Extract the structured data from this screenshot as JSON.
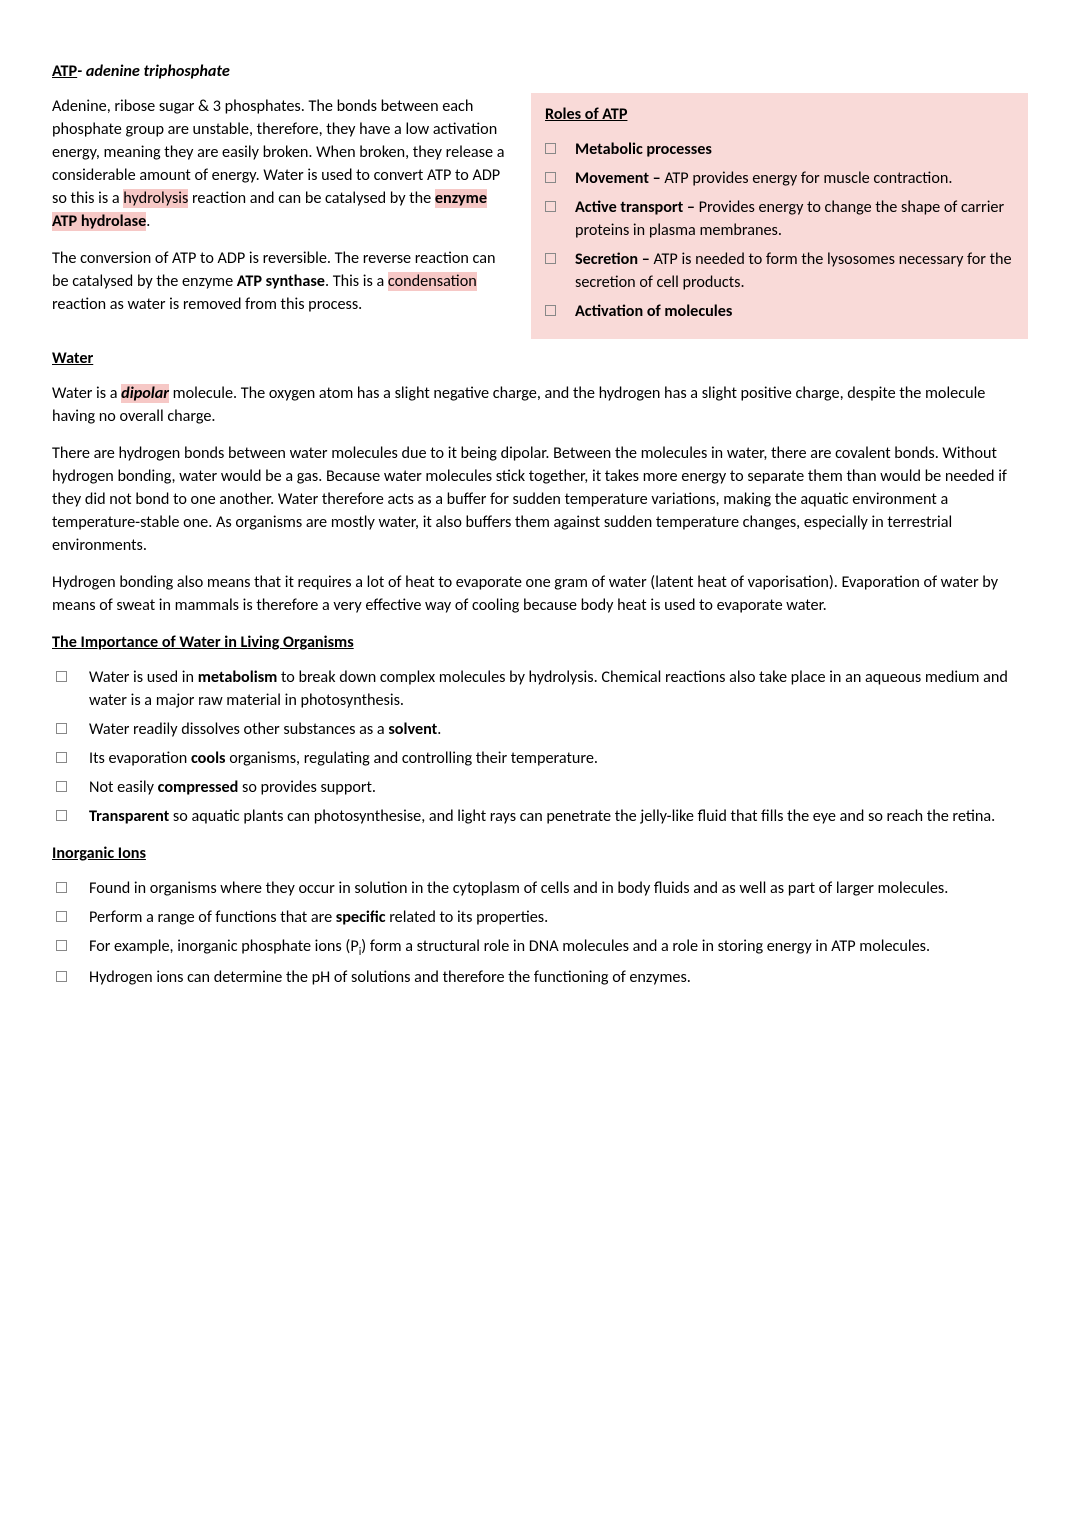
{
  "colors": {
    "highlight": "#f6c8c6",
    "aside_bg": "#f9dad8",
    "text": "#000000",
    "page_bg": "#ffffff",
    "checkbox_border": "#888888"
  },
  "typography": {
    "font_family": "Calibri",
    "body_size_pt": 12,
    "line_height": 1.42
  },
  "title": {
    "bold_part": "ATP",
    "separator": "- ",
    "italic_part": "adenine triphosphate"
  },
  "atp_para1": {
    "pre": "Adenine, ribose sugar & 3 phosphates. The bonds between each phosphate group are unstable, therefore, they have a low activation energy, meaning they are easily broken. When broken, they release a considerable amount of energy. Water is used to convert ATP to ADP so this is a ",
    "hl1": "hydrolysis",
    "mid1": " reaction and can be catalysed by the ",
    "hl2_bold": "enzyme ATP hydrolase",
    "end": "."
  },
  "atp_para2": {
    "pre": "The conversion of ATP to ADP is reversible. The reverse reaction can be catalysed by the enzyme ",
    "bold1": "ATP synthase",
    "mid": ". This is a ",
    "hl1": "condensation",
    "end": " reaction as water is removed from this process."
  },
  "aside": {
    "heading": "Roles of ATP",
    "items": [
      {
        "bold": "Metabolic processes",
        "rest": ""
      },
      {
        "bold": "Movement – ",
        "rest": "ATP provides energy for muscle contraction."
      },
      {
        "bold": "Active transport – ",
        "rest": "Provides energy to change the shape of carrier proteins in plasma membranes."
      },
      {
        "bold": "Secretion – ",
        "rest": "ATP is needed to form the lysosomes necessary for the secretion of cell products."
      },
      {
        "bold": "Activation of molecules",
        "rest": ""
      }
    ]
  },
  "water_heading": "Water",
  "water_para1": {
    "pre": "Water is a ",
    "hl_bold_italic": "dipolar",
    "end": " molecule. The oxygen atom has a slight negative charge, and the hydrogen has a slight positive charge, despite the molecule having no overall charge."
  },
  "water_para2": "There are hydrogen bonds between water molecules due to it being dipolar. Between the molecules in water, there are covalent bonds. Without hydrogen bonding, water would be a gas. Because water molecules stick together, it takes more energy to separate them than would be needed if they did not bond to one another. Water therefore acts as a buffer for sudden temperature variations, making the aquatic environment a temperature-stable one. As organisms are mostly water, it also buffers them against sudden temperature changes, especially in terrestrial environments.",
  "water_para3": "Hydrogen bonding also means that it requires a lot of heat to evaporate one gram of water (latent heat of vaporisation). Evaporation of water by means of sweat in mammals is therefore a very effective way of cooling because body heat is used to evaporate water.",
  "importance_heading": "The Importance of Water in Living Organisms",
  "importance_items": [
    {
      "segments": [
        {
          "t": "Water is used in ",
          "b": false
        },
        {
          "t": "metabolism",
          "b": true
        },
        {
          "t": " to break down complex molecules by hydrolysis. Chemical reactions also take place in an aqueous medium and water is a major raw material in photosynthesis.",
          "b": false
        }
      ]
    },
    {
      "segments": [
        {
          "t": "Water readily dissolves other substances as a ",
          "b": false
        },
        {
          "t": "solvent",
          "b": true
        },
        {
          "t": ".",
          "b": false
        }
      ]
    },
    {
      "segments": [
        {
          "t": "Its evaporation ",
          "b": false
        },
        {
          "t": "cools",
          "b": true
        },
        {
          "t": " organisms, regulating and controlling their temperature.",
          "b": false
        }
      ]
    },
    {
      "segments": [
        {
          "t": "Not easily ",
          "b": false
        },
        {
          "t": "compressed",
          "b": true
        },
        {
          "t": " so provides support.",
          "b": false
        }
      ]
    },
    {
      "segments": [
        {
          "t": "Transparent",
          "b": true
        },
        {
          "t": " so aquatic plants can photosynthesise, and light rays can penetrate the jelly-like fluid that fills the eye and so reach the retina.",
          "b": false
        }
      ]
    }
  ],
  "ions_heading": "Inorganic Ions",
  "ions_items": [
    {
      "html": "Found in organisms where they occur in solution in the cytoplasm of cells and in body fluids and as well as part of larger molecules."
    },
    {
      "html": "Perform a range of functions that are <b>specific</b> related to its properties."
    },
    {
      "html": "For example, inorganic phosphate ions (P<sub>i</sub>) form a structural role in DNA molecules and a role in storing energy in ATP molecules."
    },
    {
      "html": "Hydrogen ions can determine the pH of solutions and therefore the functioning of enzymes."
    }
  ]
}
